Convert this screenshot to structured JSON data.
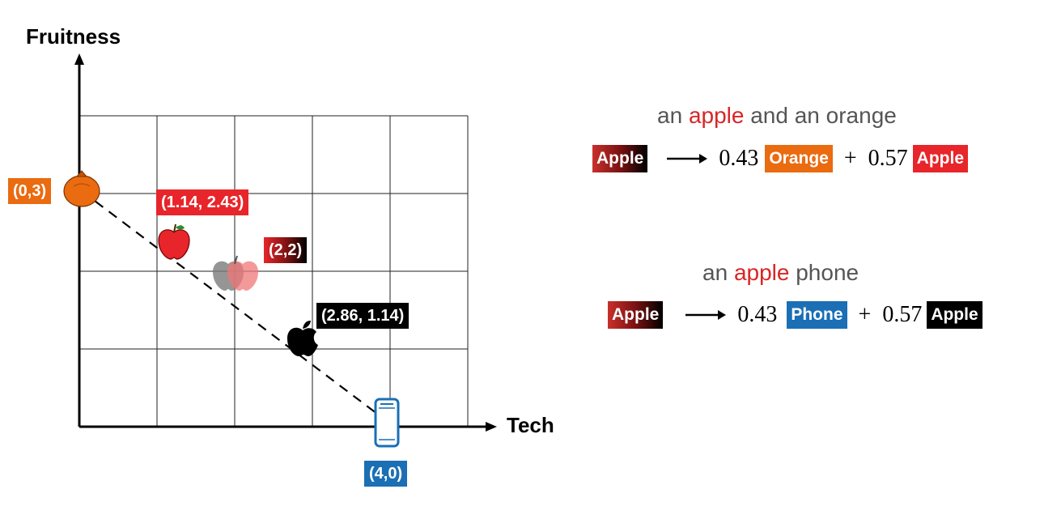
{
  "axes": {
    "x_label": "Tech",
    "y_label": "Fruitness"
  },
  "points": [
    {
      "id": "orange",
      "label": "(0,3)",
      "x": 0,
      "y": 3,
      "label_color": "#ea6b10",
      "icon": "orange-fruit-icon"
    },
    {
      "id": "apple-fruit",
      "label": "(1.14, 2.43)",
      "x": 1.14,
      "y": 2.43,
      "label_color": "#e8252a",
      "icon": "red-apple-icon"
    },
    {
      "id": "apple-mixed",
      "label": "(2,2)",
      "x": 2,
      "y": 2,
      "label_color": "gradient-red-black",
      "icon": "mixed-apple-icon"
    },
    {
      "id": "apple-tech",
      "label": "(2.86, 1.14)",
      "x": 2.86,
      "y": 1.14,
      "label_color": "#000000",
      "icon": "apple-logo-icon"
    },
    {
      "id": "phone",
      "label": "(4,0)",
      "x": 4,
      "y": 0,
      "label_color": "#1a6fb5",
      "icon": "phone-icon"
    }
  ],
  "grid": {
    "x_cells": 5,
    "y_cells": 4
  },
  "examples": [
    {
      "phrase_before": "an ",
      "phrase_highlight": "apple",
      "phrase_after": " and an orange",
      "source_tag": "Apple",
      "coef1": "0.43",
      "tag1": "Orange",
      "tag1_color": "#ea6b10",
      "plus": "+",
      "coef2": "0.57",
      "tag2": "Apple",
      "tag2_color": "#e8252a"
    },
    {
      "phrase_before": "an ",
      "phrase_highlight": "apple",
      "phrase_after": " phone",
      "source_tag": "Apple",
      "coef1": "0.43",
      "tag1": "Phone",
      "tag1_color": "#1a6fb5",
      "plus": "+",
      "coef2": "0.57",
      "tag2": "Apple",
      "tag2_color": "#000000"
    }
  ]
}
